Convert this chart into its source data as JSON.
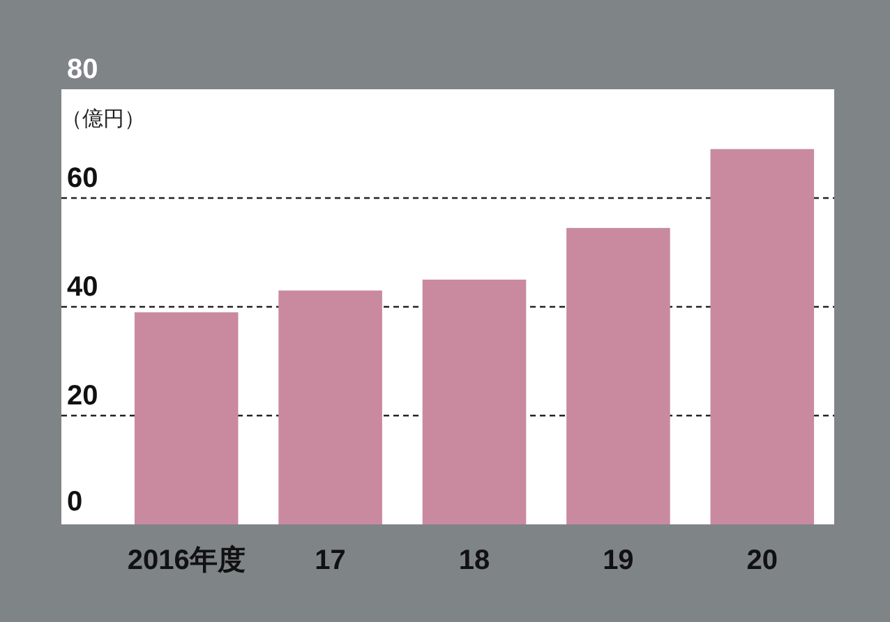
{
  "chart_data": {
    "type": "bar",
    "ylabel": "（億円）",
    "categories": [
      "2016年度",
      "17",
      "18",
      "19",
      "20"
    ],
    "values": [
      39,
      43,
      45,
      54.5,
      69
    ],
    "color": "#c98aa0",
    "ylim": [
      0,
      80
    ],
    "yticks": [
      0,
      20,
      40,
      60,
      80
    ],
    "grid": "y"
  }
}
